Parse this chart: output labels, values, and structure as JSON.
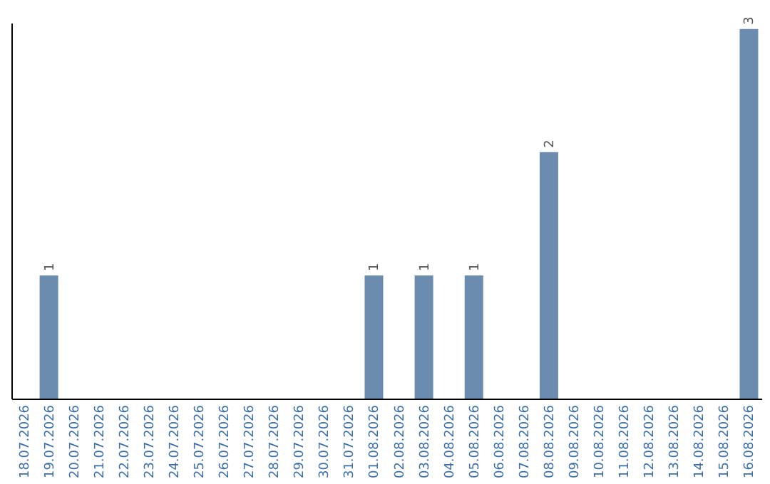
{
  "chart_data": {
    "type": "bar",
    "categories": [
      "18.07.2026",
      "19.07.2026",
      "20.07.2026",
      "21.07.2026",
      "22.07.2026",
      "23.07.2026",
      "24.07.2026",
      "25.07.2026",
      "26.07.2026",
      "27.07.2026",
      "28.07.2026",
      "29.07.2026",
      "30.07.2026",
      "31.07.2026",
      "01.08.2026",
      "02.08.2026",
      "03.08.2026",
      "04.08.2026",
      "05.08.2026",
      "06.08.2026",
      "07.08.2026",
      "08.08.2026",
      "09.08.2026",
      "10.08.2026",
      "11.08.2026",
      "12.08.2026",
      "13.08.2026",
      "14.08.2026",
      "15.08.2026",
      "16.08.2026"
    ],
    "values": [
      0,
      1,
      0,
      0,
      0,
      0,
      0,
      0,
      0,
      0,
      0,
      0,
      0,
      0,
      1,
      0,
      1,
      0,
      1,
      0,
      0,
      2,
      0,
      0,
      0,
      0,
      0,
      0,
      0,
      3
    ],
    "value_labels": [
      null,
      "1",
      null,
      null,
      null,
      null,
      null,
      null,
      null,
      null,
      null,
      null,
      null,
      null,
      "1",
      null,
      "1",
      null,
      "1",
      null,
      null,
      "2",
      null,
      null,
      null,
      null,
      null,
      null,
      null,
      "3"
    ],
    "color": "#6b8cae",
    "ylim": [
      0,
      3.05
    ],
    "tick_labels": "x",
    "grid": false
  }
}
